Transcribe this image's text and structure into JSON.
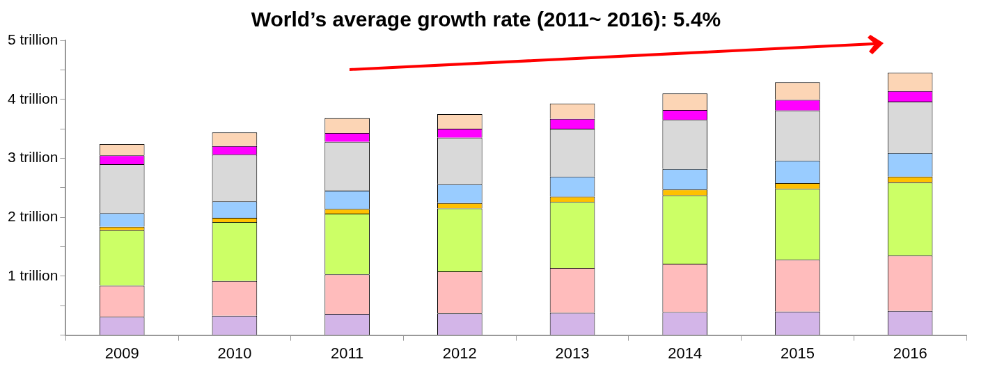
{
  "chart_data": {
    "type": "bar",
    "title": "World’s average growth rate (2011~ 2016): 5.4%",
    "stacked": true,
    "categories": [
      "2009",
      "2010",
      "2011",
      "2012",
      "2013",
      "2014",
      "2015",
      "2016"
    ],
    "series": [
      {
        "color": "#d3b5e8",
        "values": [
          0.31,
          0.33,
          0.36,
          0.37,
          0.38,
          0.39,
          0.4,
          0.41
        ]
      },
      {
        "color": "#ffbcbc",
        "values": [
          0.53,
          0.59,
          0.67,
          0.71,
          0.76,
          0.82,
          0.88,
          0.94
        ]
      },
      {
        "color": "#ccff66",
        "values": [
          0.94,
          1.0,
          1.03,
          1.07,
          1.12,
          1.16,
          1.2,
          1.24
        ]
      },
      {
        "color": "#ffc000",
        "values": [
          0.06,
          0.07,
          0.08,
          0.09,
          0.09,
          0.1,
          0.1,
          0.1
        ]
      },
      {
        "color": "#99ccff",
        "values": [
          0.23,
          0.28,
          0.31,
          0.32,
          0.34,
          0.35,
          0.38,
          0.4
        ]
      },
      {
        "color": "#d9d9d9",
        "values": [
          0.83,
          0.79,
          0.83,
          0.79,
          0.81,
          0.83,
          0.85,
          0.87
        ]
      },
      {
        "color": "#ff00ff",
        "values": [
          0.15,
          0.15,
          0.15,
          0.15,
          0.17,
          0.17,
          0.18,
          0.18
        ]
      },
      {
        "color": "#fcd5b5",
        "values": [
          0.19,
          0.23,
          0.25,
          0.25,
          0.26,
          0.28,
          0.3,
          0.31
        ]
      }
    ],
    "ylim": [
      0,
      5
    ],
    "yticks": [
      {
        "value": 0,
        "label": null
      },
      {
        "value": 0.5,
        "label": null
      },
      {
        "value": 1,
        "label": "1 trillion"
      },
      {
        "value": 1.5,
        "label": null
      },
      {
        "value": 2,
        "label": "2 trillion"
      },
      {
        "value": 2.5,
        "label": null
      },
      {
        "value": 3,
        "label": "3 trillion"
      },
      {
        "value": 3.5,
        "label": null
      },
      {
        "value": 4,
        "label": "4 trillion"
      },
      {
        "value": 4.5,
        "label": null
      },
      {
        "value": 5,
        "label": "5 trillion"
      }
    ],
    "grid": false,
    "legend": false
  }
}
